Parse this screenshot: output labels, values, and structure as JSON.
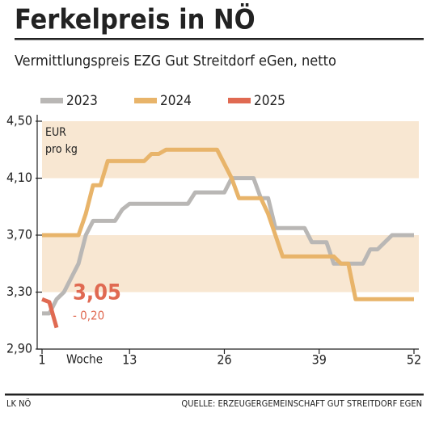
{
  "chart_data": {
    "type": "line",
    "title": "Ferkelpreis in NÖ",
    "subtitle": "Vermittlungspreis EZG Gut Streitdorf eGen, netto",
    "unit_label": [
      "EUR",
      "pro kg"
    ],
    "x_label": "Woche",
    "x": [
      1,
      2,
      3,
      4,
      5,
      6,
      7,
      8,
      9,
      10,
      11,
      12,
      13,
      14,
      15,
      16,
      17,
      18,
      19,
      20,
      21,
      22,
      23,
      24,
      25,
      26,
      27,
      28,
      29,
      30,
      31,
      32,
      33,
      34,
      35,
      36,
      37,
      38,
      39,
      40,
      41,
      42,
      43,
      44,
      45,
      46,
      47,
      48,
      49,
      50,
      51,
      52
    ],
    "xlim": [
      1,
      52
    ],
    "xticks": [
      1,
      13,
      26,
      39,
      52
    ],
    "ylim": [
      2.9,
      4.5
    ],
    "yticks": [
      {
        "value": 2.9,
        "label": "2,90"
      },
      {
        "value": 3.3,
        "label": "3,30"
      },
      {
        "value": 3.7,
        "label": "3,70"
      },
      {
        "value": 4.1,
        "label": "4,10"
      },
      {
        "value": 4.5,
        "label": "4,50"
      }
    ],
    "bands": [
      [
        3.3,
        3.7
      ],
      [
        4.1,
        4.5
      ]
    ],
    "band_color": "#f8e7d2",
    "series": [
      {
        "name": "2023",
        "color": "#b9b7b5",
        "values": [
          3.15,
          3.15,
          3.25,
          3.3,
          3.4,
          3.5,
          3.7,
          3.8,
          3.8,
          3.8,
          3.8,
          3.88,
          3.92,
          3.92,
          3.92,
          3.92,
          3.92,
          3.92,
          3.92,
          3.92,
          3.92,
          4.0,
          4.0,
          4.0,
          4.0,
          4.0,
          4.1,
          4.1,
          4.1,
          4.1,
          3.96,
          3.96,
          3.75,
          3.75,
          3.75,
          3.75,
          3.75,
          3.65,
          3.65,
          3.65,
          3.5,
          3.5,
          3.5,
          3.5,
          3.5,
          3.6,
          3.6,
          3.65,
          3.7,
          3.7,
          3.7,
          3.7
        ]
      },
      {
        "name": "2024",
        "color": "#e8b46a",
        "values": [
          3.7,
          3.7,
          3.7,
          3.7,
          3.7,
          3.7,
          3.85,
          4.05,
          4.05,
          4.22,
          4.22,
          4.22,
          4.22,
          4.22,
          4.22,
          4.27,
          4.27,
          4.3,
          4.3,
          4.3,
          4.3,
          4.3,
          4.3,
          4.3,
          4.3,
          4.2,
          4.1,
          3.96,
          3.96,
          3.96,
          3.96,
          3.85,
          3.7,
          3.55,
          3.55,
          3.55,
          3.55,
          3.55,
          3.55,
          3.55,
          3.55,
          3.5,
          3.5,
          3.25,
          3.25,
          3.25,
          3.25,
          3.25,
          3.25,
          3.25,
          3.25,
          3.25
        ]
      },
      {
        "name": "2025",
        "color": "#e06a52",
        "values": [
          3.25,
          3.23,
          3.05,
          null,
          null,
          null,
          null,
          null,
          null,
          null,
          null,
          null,
          null,
          null,
          null,
          null,
          null,
          null,
          null,
          null,
          null,
          null,
          null,
          null,
          null,
          null,
          null,
          null,
          null,
          null,
          null,
          null,
          null,
          null,
          null,
          null,
          null,
          null,
          null,
          null,
          null,
          null,
          null,
          null,
          null,
          null,
          null,
          null,
          null,
          null,
          null,
          null
        ]
      }
    ],
    "annotations": [
      {
        "text": "3,05",
        "value": 3.05
      },
      {
        "text": "- 0,20",
        "value": -0.2
      }
    ],
    "footer_left": "LK NÖ",
    "footer_right": "QUELLE: ERZEUGERGEMEINSCHAFT GUT STREITDORF EGEN"
  }
}
